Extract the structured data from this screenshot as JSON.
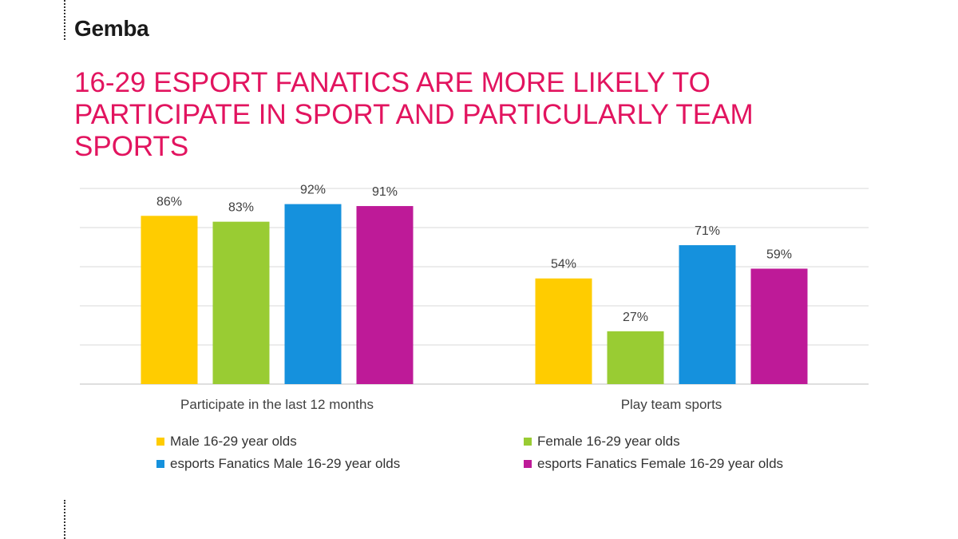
{
  "brand": "Gemba",
  "title": "16-29 ESPORT FANATICS ARE MORE LIKELY TO PARTICIPATE IN SPORT AND PARTICULARLY TEAM SPORTS",
  "colors": {
    "title": "#e2145f",
    "male": "#ffcc00",
    "female": "#99cc33",
    "esports_male": "#1591dd",
    "esports_female": "#be1a98"
  },
  "chart_data": {
    "type": "bar",
    "title": "",
    "xlabel": "",
    "ylabel": "",
    "categories": [
      "Participate in the last 12 months",
      "Play team sports"
    ],
    "series": [
      {
        "name": "Male 16-29 year olds",
        "values": [
          86,
          54
        ],
        "labels": [
          "86%",
          "54%"
        ],
        "color": "#ffcc00"
      },
      {
        "name": "Female 16-29 year olds",
        "values": [
          83,
          27
        ],
        "labels": [
          "83%",
          "27%"
        ],
        "color": "#99cc33"
      },
      {
        "name": "esports Fanatics Male 16-29 year olds",
        "values": [
          92,
          71
        ],
        "labels": [
          "92%",
          "71%"
        ],
        "color": "#1591dd"
      },
      {
        "name": "esports Fanatics Female 16-29 year olds",
        "values": [
          91,
          59
        ],
        "labels": [
          "91%",
          "59%"
        ],
        "color": "#be1a98"
      }
    ],
    "ylim": [
      0,
      100
    ],
    "grid": true,
    "y_axis_labels_shown": false,
    "legend_position": "bottom"
  }
}
